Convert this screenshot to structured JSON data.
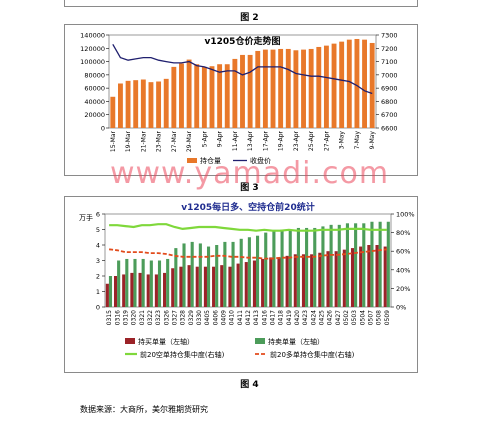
{
  "figure_labels": {
    "fig2": "图 2",
    "fig3": "图 3",
    "fig4": "图 4"
  },
  "watermark": "www.yamadi.com",
  "source_note": "数据来源：大商所，美尔雅期货研究",
  "colors": {
    "bar_oi": "#e8782a",
    "settle_line": "#1f1f6e",
    "buy_bar": "#9b2328",
    "sell_bar": "#4c9c5a",
    "short_pct": "#7fd83b",
    "long_pct": "#e24b1c",
    "watermark": "#eb465a"
  },
  "chart_data": [
    {
      "type": "bar",
      "title": "v1205仓价走势图",
      "categories": [
        "15-Mar",
        "16-Mar",
        "19-Mar",
        "20-Mar",
        "21-Mar",
        "22-Mar",
        "23-Mar",
        "26-Mar",
        "27-Mar",
        "28-Mar",
        "29-Mar",
        "30-Mar",
        "5-Apr",
        "6-Apr",
        "9-Apr",
        "10-Apr",
        "11-Apr",
        "12-Apr",
        "13-Apr",
        "16-Apr",
        "17-Apr",
        "18-Apr",
        "19-Apr",
        "20-Apr",
        "23-Apr",
        "24-Apr",
        "25-Apr",
        "26-Apr",
        "27-Apr",
        "2-May",
        "3-May",
        "4-May",
        "7-May",
        "8-May",
        "9-May"
      ],
      "tick_labels": [
        "15-Mar",
        "19-Mar",
        "21-Mar",
        "23-Mar",
        "27-Mar",
        "29-Mar",
        "5-Apr",
        "9-Apr",
        "11-Apr",
        "13-Apr",
        "17-Apr",
        "19-Apr",
        "23-Apr",
        "25-Apr",
        "27-Apr",
        "3-May",
        "7-May",
        "9-May"
      ],
      "series": [
        {
          "name": "持仓量",
          "axis": "left",
          "type": "bar",
          "values": [
            47000,
            67000,
            71000,
            72000,
            73000,
            69000,
            70000,
            74000,
            92000,
            97000,
            103000,
            96000,
            92000,
            93000,
            96000,
            96000,
            104000,
            110000,
            110000,
            116000,
            118000,
            118000,
            119000,
            119000,
            117000,
            118000,
            119000,
            122000,
            124000,
            127000,
            130000,
            133000,
            134000,
            133000,
            128000
          ]
        },
        {
          "name": "收盘价",
          "axis": "right",
          "type": "line",
          "values": [
            7230,
            7130,
            7110,
            7120,
            7130,
            7130,
            7110,
            7100,
            7090,
            7090,
            7100,
            7070,
            7060,
            7040,
            7020,
            7030,
            7030,
            7000,
            7020,
            7060,
            7060,
            7060,
            7060,
            7040,
            7010,
            7000,
            6990,
            6990,
            6980,
            6970,
            6960,
            6950,
            6920,
            6880,
            6860
          ]
        }
      ],
      "ylim_left": [
        0,
        140000
      ],
      "yticks_left": [
        "0",
        "20000",
        "40000",
        "60000",
        "80000",
        "100000",
        "120000",
        "140000"
      ],
      "ylim_right": [
        6600,
        7300
      ],
      "yticks_right": [
        "6600",
        "6700",
        "6800",
        "6900",
        "7000",
        "7100",
        "7200",
        "7300"
      ],
      "legend": [
        "持仓量",
        "收盘价"
      ]
    },
    {
      "type": "bar",
      "title": "v1205每日多、空持仓前20统计",
      "ylabel_left": "万手",
      "categories": [
        "0315",
        "0316",
        "0319",
        "0320",
        "0321",
        "0322",
        "0323",
        "0326",
        "0327",
        "0328",
        "0329",
        "0330",
        "0405",
        "0406",
        "0409",
        "0410",
        "0411",
        "0412",
        "0413",
        "0416",
        "0417",
        "0418",
        "0419",
        "0420",
        "0423",
        "0424",
        "0425",
        "0426",
        "0427",
        "0502",
        "0503",
        "0504",
        "0507",
        "0508",
        "0509"
      ],
      "series": [
        {
          "name": "持买单量（左轴）",
          "axis": "left",
          "type": "bar",
          "values": [
            1.5,
            2.0,
            2.1,
            2.2,
            2.2,
            2.1,
            2.1,
            2.2,
            2.5,
            2.6,
            2.7,
            2.6,
            2.6,
            2.6,
            2.7,
            2.6,
            2.8,
            2.9,
            3.0,
            3.1,
            3.2,
            3.2,
            3.3,
            3.4,
            3.4,
            3.4,
            3.5,
            3.6,
            3.6,
            3.7,
            3.8,
            3.9,
            4.0,
            4.0,
            3.9
          ]
        },
        {
          "name": "持卖单量（左轴）",
          "axis": "left",
          "type": "bar",
          "values": [
            2.0,
            3.0,
            3.1,
            3.1,
            3.1,
            3.0,
            3.0,
            3.1,
            3.8,
            4.1,
            4.2,
            4.1,
            3.9,
            4.0,
            4.2,
            4.2,
            4.4,
            4.5,
            4.6,
            4.8,
            4.9,
            5.0,
            5.0,
            5.1,
            5.1,
            5.1,
            5.2,
            5.3,
            5.3,
            5.4,
            5.4,
            5.4,
            5.5,
            5.5,
            5.5
          ]
        },
        {
          "name": "前20空单持仓集中度(右轴)",
          "axis": "right",
          "type": "line",
          "values": [
            88,
            88,
            87,
            86,
            88,
            88,
            89,
            89,
            86,
            84,
            85,
            86,
            86,
            86,
            85,
            84,
            83,
            83,
            82,
            83,
            82,
            82,
            83,
            82,
            82,
            82,
            83,
            83,
            83,
            84,
            84,
            84,
            83,
            83,
            83
          ]
        },
        {
          "name": "前20多单持仓集中度(右轴)",
          "axis": "right",
          "type": "line",
          "values": [
            62,
            61,
            59,
            59,
            59,
            58,
            58,
            57,
            55,
            54,
            54,
            54,
            54,
            55,
            55,
            54,
            54,
            53,
            53,
            52,
            52,
            53,
            53,
            54,
            54,
            54,
            55,
            56,
            56,
            57,
            58,
            59,
            60,
            61,
            62
          ]
        }
      ],
      "ylim_left": [
        0,
        6
      ],
      "yticks_left": [
        "0",
        "1",
        "2",
        "3",
        "4",
        "5",
        "6"
      ],
      "ylim_right": [
        0,
        100
      ],
      "yticks_right": [
        "0%",
        "20%",
        "40%",
        "60%",
        "80%",
        "100%"
      ]
    }
  ]
}
